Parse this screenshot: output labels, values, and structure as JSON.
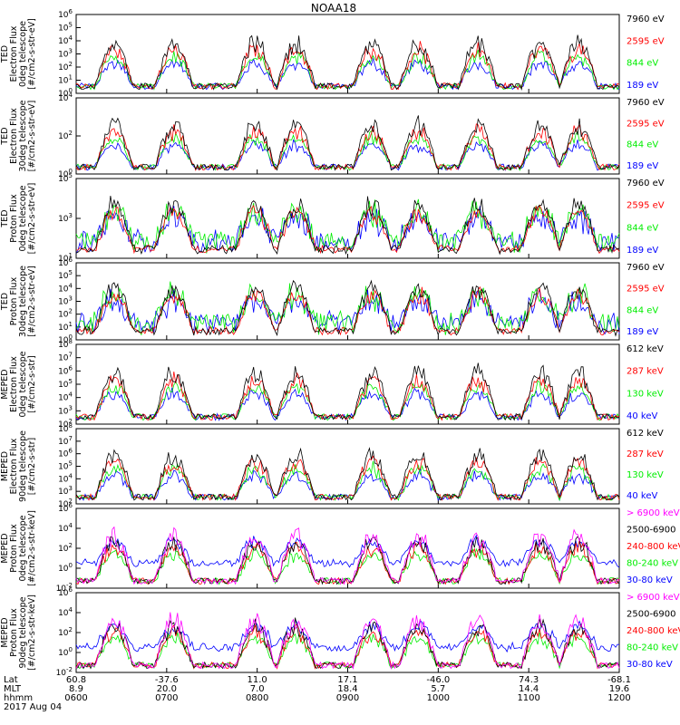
{
  "title": "NOAA18",
  "colors": {
    "black": "#000000",
    "red": "#ff0000",
    "green": "#00ee00",
    "blue": "#0000ff",
    "magenta": "#ff00ff"
  },
  "chart_data": [
    {
      "type": "line",
      "ylabel": [
        "TED",
        "Electron Flux",
        "0deg telescope",
        "[#/cm2-s-str-eV]"
      ],
      "y_log_range": [
        0,
        6
      ],
      "y_ticks": [
        "10^0",
        "10^1",
        "10^2",
        "10^3",
        "10^4",
        "10^5",
        "10^6"
      ],
      "series": [
        {
          "name": "7960 eV",
          "color": "black"
        },
        {
          "name": "2595 eV",
          "color": "red"
        },
        {
          "name": "844 eV",
          "color": "green"
        },
        {
          "name": "189 eV",
          "color": "blue"
        }
      ]
    },
    {
      "type": "line",
      "ylabel": [
        "TED",
        "Electron Flux",
        "30deg telescope",
        "[#/cm2-s-str-eV]"
      ],
      "y_log_range": [
        0,
        5
      ],
      "y_ticks": [
        "10^0",
        "10^2",
        "10^4"
      ],
      "series": [
        {
          "name": "7960 eV",
          "color": "black"
        },
        {
          "name": "2595 eV",
          "color": "red"
        },
        {
          "name": "844 eV",
          "color": "green"
        },
        {
          "name": "189 eV",
          "color": "blue"
        }
      ]
    },
    {
      "type": "line",
      "ylabel": [
        "TED",
        "Proton Flux",
        "0deg telescope",
        "[#/cm2-s-str-eV]"
      ],
      "y_log_range": [
        0,
        5
      ],
      "y_ticks": [
        "10^1",
        "10^3",
        "10^5"
      ],
      "series": [
        {
          "name": "7960 eV",
          "color": "black"
        },
        {
          "name": "2595 eV",
          "color": "red"
        },
        {
          "name": "844 eV",
          "color": "green"
        },
        {
          "name": "189 eV",
          "color": "blue"
        }
      ]
    },
    {
      "type": "line",
      "ylabel": [
        "TED",
        "Proton Flux",
        "30deg telescope",
        "[#/cm2-s-str-eV]"
      ],
      "y_log_range": [
        0,
        6
      ],
      "y_ticks": [
        "10^0",
        "10^1",
        "10^2",
        "10^3",
        "10^4",
        "10^5",
        "10^6"
      ],
      "series": [
        {
          "name": "7960 eV",
          "color": "black"
        },
        {
          "name": "2595 eV",
          "color": "red"
        },
        {
          "name": "844 eV",
          "color": "green"
        },
        {
          "name": "189 eV",
          "color": "blue"
        }
      ]
    },
    {
      "type": "line",
      "ylabel": [
        "MEPED",
        "Electron Flux",
        "0deg telescope",
        "[#/cm2-s-str]"
      ],
      "y_log_range": [
        2,
        8
      ],
      "y_ticks": [
        "10^2",
        "10^3",
        "10^4",
        "10^5",
        "10^6",
        "10^7",
        "10^8"
      ],
      "series": [
        {
          "name": "612 keV",
          "color": "black"
        },
        {
          "name": "287 keV",
          "color": "red"
        },
        {
          "name": "130 keV",
          "color": "green"
        },
        {
          "name": "40 keV",
          "color": "blue"
        }
      ]
    },
    {
      "type": "line",
      "ylabel": [
        "MEPED",
        "Electron Flux",
        "90deg telescope",
        "[#/cm2-s-str]"
      ],
      "y_log_range": [
        2,
        8
      ],
      "y_ticks": [
        "10^2",
        "10^3",
        "10^4",
        "10^5",
        "10^6",
        "10^7",
        "10^8"
      ],
      "series": [
        {
          "name": "612 keV",
          "color": "black"
        },
        {
          "name": "287 keV",
          "color": "red"
        },
        {
          "name": "130 keV",
          "color": "green"
        },
        {
          "name": "40 keV",
          "color": "blue"
        }
      ]
    },
    {
      "type": "line",
      "ylabel": [
        "MEPED",
        "Proton Flux",
        "0deg telescope",
        "[#/cm2-s-str-keV]"
      ],
      "y_log_range": [
        -2,
        6
      ],
      "y_ticks": [
        "10^-2",
        "10^0",
        "10^2",
        "10^4",
        "10^6"
      ],
      "series": [
        {
          "name": "> 6900 keV",
          "color": "magenta"
        },
        {
          "name": "2500-6900",
          "color": "black"
        },
        {
          "name": "240-800 keV",
          "color": "red"
        },
        {
          "name": "80-240 keV",
          "color": "green"
        },
        {
          "name": "30-80 keV",
          "color": "blue"
        }
      ]
    },
    {
      "type": "line",
      "ylabel": [
        "MEPED",
        "Proton Flux",
        "90deg telescope",
        "[#/cm2-s-str-keV]"
      ],
      "y_log_range": [
        -2,
        6
      ],
      "y_ticks": [
        "10^-2",
        "10^0",
        "10^2",
        "10^4",
        "10^6"
      ],
      "series": [
        {
          "name": "> 6900 keV",
          "color": "magenta"
        },
        {
          "name": "2500-6900",
          "color": "black"
        },
        {
          "name": "240-800 keV",
          "color": "red"
        },
        {
          "name": "80-240 keV",
          "color": "green"
        },
        {
          "name": "30-80 keV",
          "color": "blue"
        }
      ]
    }
  ],
  "x_axis": {
    "row_labels": [
      "Lat",
      "MLT",
      "hhmm",
      "2017 Aug 04"
    ],
    "ticks": [
      {
        "lat": "60.8",
        "mlt": "8.9",
        "hhmm": "0600"
      },
      {
        "lat": "-37.6",
        "mlt": "20.0",
        "hhmm": "0700"
      },
      {
        "lat": "11.0",
        "mlt": "7.0",
        "hhmm": "0800"
      },
      {
        "lat": "17.1",
        "mlt": "18.4",
        "hhmm": "0900"
      },
      {
        "lat": "-46.0",
        "mlt": "5.7",
        "hhmm": "1000"
      },
      {
        "lat": "74.3",
        "mlt": "14.4",
        "hhmm": "1100"
      },
      {
        "lat": "-68.1",
        "mlt": "19.6",
        "hhmm": "1200"
      }
    ]
  }
}
